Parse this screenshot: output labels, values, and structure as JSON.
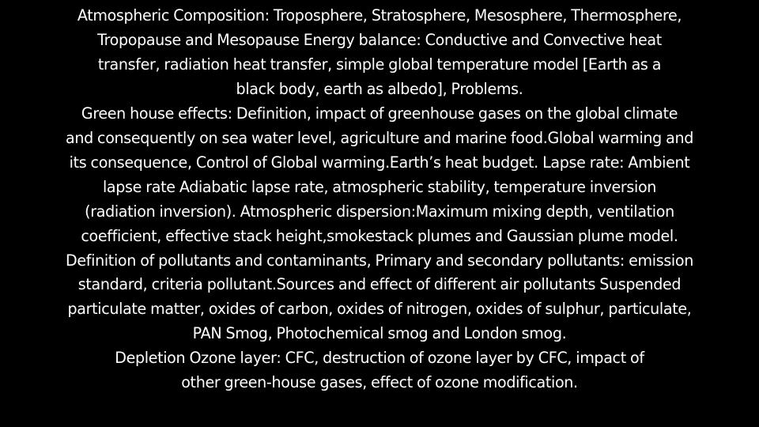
{
  "slide": {
    "background": "#000000",
    "text_color": "#ffffff",
    "lines": [
      "Atmospheric Composition: Troposphere, Stratosphere, Mesosphere, Thermosphere,",
      "Tropopause and Mesopause  Energy balance: Conductive and Convective heat",
      "transfer, radiation heat transfer, simple global temperature model [Earth as a",
      "black body, earth as albedo], Problems.",
      "Green house effects: Definition, impact of greenhouse gases on the global climate",
      "and consequently on sea water level, agriculture and marine food.Global warming and",
      "its consequence, Control of Global warming.Earth’s heat budget. Lapse rate: Ambient",
      "lapse rate Adiabatic lapse rate, atmospheric stability, temperature inversion",
      "(radiation inversion). Atmospheric dispersion:Maximum mixing depth, ventilation",
      "coefficient, effective stack height,smokestack plumes and Gaussian plume model.",
      "Definition of pollutants and contaminants, Primary and secondary pollutants: emission",
      "standard, criteria pollutant.Sources and effect of different air pollutants Suspended",
      "particulate matter, oxides of carbon, oxides of nitrogen, oxides of sulphur, particulate,",
      "PAN Smog, Photochemical smog and London smog.",
      "Depletion Ozone layer: CFC, destruction of ozone layer by CFC, impact of",
      "other green-house gases, effect of ozone modification."
    ]
  }
}
